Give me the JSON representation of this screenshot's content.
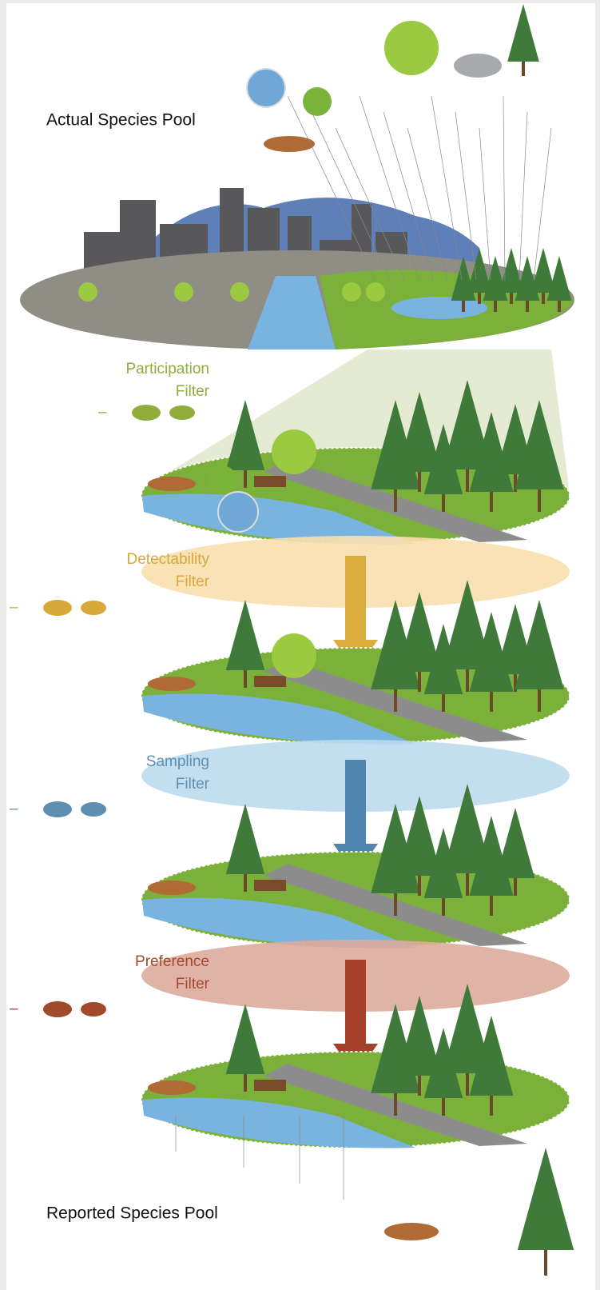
{
  "top_label": "Actual Species Pool",
  "filters": [
    {
      "lines": [
        "Participation",
        "Filter"
      ],
      "sign": "–"
    },
    {
      "lines": [
        "Detectability",
        "Filter"
      ],
      "sign": "–"
    },
    {
      "lines": [
        "Sampling",
        "Filter"
      ],
      "sign": "–"
    },
    {
      "lines": [
        "Preference",
        "Filter"
      ],
      "sign": "–"
    }
  ],
  "bottom_label": "Reported Species Pool"
}
